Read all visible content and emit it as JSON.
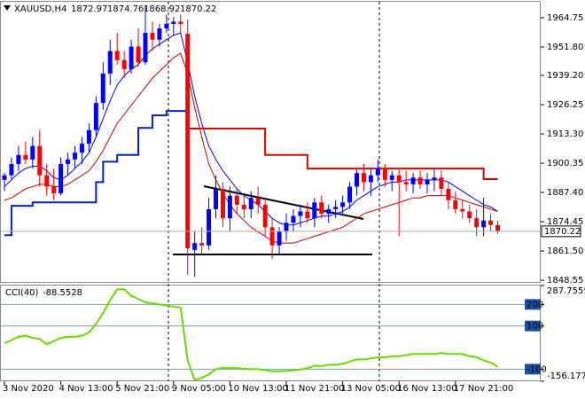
{
  "chart_data": {
    "type": "candlestick",
    "symbol": "XAUUSD,H4",
    "categories": [
      "3 Nov 2020",
      null,
      null,
      null,
      null,
      null,
      null,
      null,
      "4 Nov 13:00",
      null,
      null,
      null,
      null,
      null,
      null,
      null,
      "5 Nov 21:00",
      null,
      null,
      null,
      null,
      null,
      null,
      null,
      "9 Nov 05:00",
      null,
      null,
      null,
      null,
      null,
      null,
      null,
      "10 Nov 13:00",
      null,
      null,
      null,
      null,
      null,
      null,
      null,
      "11 Nov 21:00",
      null,
      null,
      null,
      null,
      null,
      null,
      null,
      "13 Nov 05:00",
      null,
      null,
      null,
      null,
      null,
      null,
      null,
      "16 Nov 13:00",
      null,
      null,
      null,
      null,
      null,
      null,
      null,
      "17 Nov 21:00",
      null,
      null,
      null,
      null,
      null,
      null
    ],
    "open": [
      1893,
      1895,
      1900,
      1904,
      1902,
      1908,
      1895,
      1890,
      1887,
      1900,
      1902,
      1905,
      1909,
      1915,
      1927,
      1940,
      1950,
      1946,
      1942,
      1952,
      1945,
      1958,
      1955,
      1960,
      1962,
      1963,
      1957.6,
      1862,
      1865,
      1864,
      1880,
      1889,
      1876,
      1886,
      1882,
      1880,
      1885,
      1882,
      1872,
      1864,
      1870,
      1874,
      1877,
      1879,
      1876,
      1883,
      1878,
      1880,
      1881,
      1883,
      1890,
      1896,
      1892,
      1895,
      1898,
      1893,
      1895,
      1892,
      1891,
      1894,
      1891,
      1893,
      1894,
      1889,
      1884,
      1880,
      1879,
      1876,
      1872,
      1875,
      1872.97
    ],
    "high": [
      1896,
      1903,
      1908,
      1910,
      1912,
      1915,
      1900,
      1898,
      1903,
      1905,
      1908,
      1912,
      1918,
      1930,
      1945,
      1955,
      1958,
      1950,
      1955,
      1960,
      1970,
      1963,
      1962,
      1966,
      1965,
      1966,
      1964,
      1870,
      1872,
      1885,
      1895,
      1892,
      1890,
      1889,
      1886,
      1888,
      1890,
      1884,
      1876,
      1872,
      1878,
      1880,
      1882,
      1883,
      1885,
      1886,
      1882,
      1884,
      1886,
      1892,
      1898,
      1900,
      1898,
      1902,
      1900,
      1897,
      1898,
      1897,
      1896,
      1897,
      1896,
      1898,
      1897,
      1892,
      1888,
      1884,
      1882,
      1880,
      1885,
      1878,
      1874.76
    ],
    "low": [
      1888,
      1893,
      1897,
      1900,
      1898,
      1890,
      1886,
      1884,
      1886,
      1895,
      1898,
      1900,
      1905,
      1912,
      1924,
      1935,
      1944,
      1938,
      1940,
      1943,
      1944,
      1950,
      1952,
      1958,
      1957,
      1958,
      1851,
      1850,
      1860,
      1862,
      1876,
      1872,
      1870,
      1878,
      1876,
      1876,
      1878,
      1868,
      1858,
      1860,
      1866,
      1870,
      1872,
      1874,
      1872,
      1876,
      1874,
      1876,
      1877,
      1880,
      1886,
      1888,
      1886,
      1892,
      1890,
      1888,
      1868,
      1888,
      1887,
      1889,
      1887,
      1888,
      1886,
      1880,
      1878,
      1876,
      1874,
      1868,
      1868,
      1870,
      1868.92
    ],
    "close": [
      1895,
      1900,
      1904,
      1902,
      1908,
      1895,
      1890,
      1887,
      1900,
      1902,
      1905,
      1909,
      1915,
      1927,
      1940,
      1950,
      1946,
      1942,
      1952,
      1945,
      1958,
      1955,
      1960,
      1962,
      1963,
      1962,
      1862.7,
      1865,
      1864,
      1880,
      1889,
      1876,
      1886,
      1882,
      1880,
      1885,
      1882,
      1872,
      1864,
      1870,
      1874,
      1877,
      1879,
      1876,
      1883,
      1878,
      1880,
      1881,
      1883,
      1890,
      1896,
      1892,
      1895,
      1898,
      1893,
      1895,
      1892,
      1891,
      1894,
      1891,
      1893,
      1894,
      1889,
      1884,
      1880,
      1879,
      1876,
      1872,
      1875,
      1873,
      1870.22
    ],
    "up_color": "#0000ff",
    "down_color": "#ff0000",
    "lines": [
      {
        "color": "#0000ff",
        "width": 1,
        "style": "line",
        "values": [
          1890,
          1893,
          1896,
          1898,
          1899,
          1899,
          1897,
          1894,
          1893,
          1895,
          1898,
          1901,
          1905,
          1912,
          1920,
          1928,
          1935,
          1939,
          1942,
          1944,
          1948,
          1951,
          1953,
          1955,
          1957,
          1958,
          1945,
          1930,
          1918,
          1908,
          1902,
          1897,
          1893,
          1889,
          1886,
          1884,
          1882,
          1879,
          1876,
          1874,
          1873,
          1873,
          1874,
          1875,
          1876,
          1877,
          1877,
          1878,
          1879,
          1881,
          1884,
          1886,
          1888,
          1890,
          1891,
          1892,
          1892,
          1893,
          1893,
          1893,
          1893,
          1893,
          1893,
          1892,
          1890,
          1888,
          1886,
          1884,
          1882,
          1881,
          1879
        ]
      },
      {
        "color": "#cc0000",
        "width": 1,
        "style": "line",
        "values": [
          1884,
          1885,
          1887,
          1889,
          1890,
          1891,
          1891,
          1890,
          1890,
          1891,
          1893,
          1895,
          1897,
          1901,
          1906,
          1912,
          1918,
          1922,
          1926,
          1930,
          1934,
          1938,
          1941,
          1944,
          1947,
          1949,
          1940,
          1925,
          1912,
          1900,
          1893,
          1887,
          1882,
          1878,
          1875,
          1872,
          1870,
          1868,
          1866,
          1865,
          1865,
          1865,
          1866,
          1867,
          1868,
          1869,
          1870,
          1871,
          1872,
          1874,
          1876,
          1878,
          1879,
          1880,
          1881,
          1882,
          1883,
          1884,
          1885,
          1885,
          1886,
          1886,
          1886,
          1886,
          1885,
          1884,
          1883,
          1882,
          1881,
          1880,
          1879
        ]
      },
      {
        "color": "#0022cc",
        "width": 2,
        "style": "step",
        "values": [
          1868.5,
          1881.5,
          1881.5,
          1881.5,
          1883,
          1883,
          1883,
          1883,
          1883,
          1883,
          1883,
          1883,
          1883,
          1892,
          1901,
          1901,
          1904,
          1904,
          1904,
          1916,
          1916,
          1921.5,
          1921.5,
          1923.5,
          1923.5,
          1923.5,
          1923.5,
          null,
          null,
          null,
          null,
          null,
          null,
          null,
          null,
          null,
          null,
          null,
          null,
          null,
          null,
          null,
          null,
          null,
          null,
          null,
          null,
          null,
          null,
          null,
          null,
          null,
          null,
          null,
          null,
          null,
          null,
          null,
          null,
          null,
          null,
          null,
          null,
          null,
          null,
          null,
          null,
          null,
          null,
          null,
          null
        ]
      },
      {
        "color": "#dd0000",
        "width": 2,
        "style": "step",
        "values": [
          null,
          null,
          null,
          null,
          null,
          null,
          null,
          null,
          null,
          null,
          null,
          null,
          null,
          null,
          null,
          null,
          null,
          null,
          null,
          null,
          null,
          null,
          null,
          null,
          null,
          null,
          1915.7,
          1915.7,
          1915.7,
          1915.7,
          1915.7,
          1915.7,
          1915.7,
          1915.7,
          1915.7,
          1915.7,
          1915.7,
          1904,
          1904,
          1904,
          1904,
          1904,
          1904,
          1898,
          1898,
          1898,
          1898,
          1898,
          1898,
          1898,
          1898,
          1898,
          1898,
          1898,
          1898,
          1898,
          1898,
          1898,
          1898,
          1898,
          1898,
          1898,
          1898,
          1898,
          1898,
          1898,
          1898,
          1898,
          1893.3,
          1893.3,
          1893.3
        ]
      }
    ],
    "ylim": [
      1847.8,
      1971.8
    ],
    "yticks": [
      1964.75,
      {
        "value": 1951.8,
        "label": "1951.80"
      },
      {
        "value": 1939.2,
        "label": "1939.20"
      },
      1926.25,
      {
        "value": 1913.3,
        "label": "1913.30"
      },
      1900.35,
      {
        "value": 1887.4,
        "label": "1887.40"
      },
      1874.45,
      {
        "value": 1861.5,
        "label": "1861.50"
      },
      1848.55
    ],
    "cci": {
      "label": "CCI(40)",
      "color": "#66dd00",
      "values": [
        20,
        35,
        50,
        55,
        45,
        40,
        15,
        30,
        45,
        50,
        50,
        55,
        70,
        110,
        160,
        220,
        270,
        270,
        240,
        225,
        210,
        205,
        200,
        195,
        190,
        185,
        -60,
        -150,
        -140,
        -125,
        -100,
        -95,
        -95,
        -95,
        -98,
        -100,
        -100,
        -105,
        -110,
        -110,
        -108,
        -106,
        -102,
        -95,
        -85,
        -85,
        -80,
        -80,
        -75,
        -65,
        -55,
        -55,
        -50,
        -45,
        -45,
        -40,
        -40,
        -35,
        -30,
        -30,
        -30,
        -30,
        -25,
        -30,
        -30,
        -30,
        -40,
        -45,
        -60,
        -70,
        -88.5528
      ],
      "ylim": [
        -156.1775,
        287.7555
      ],
      "yticks": [
        287.7555,
        200,
        100,
        -100,
        -156.1775
      ]
    }
  }
}
